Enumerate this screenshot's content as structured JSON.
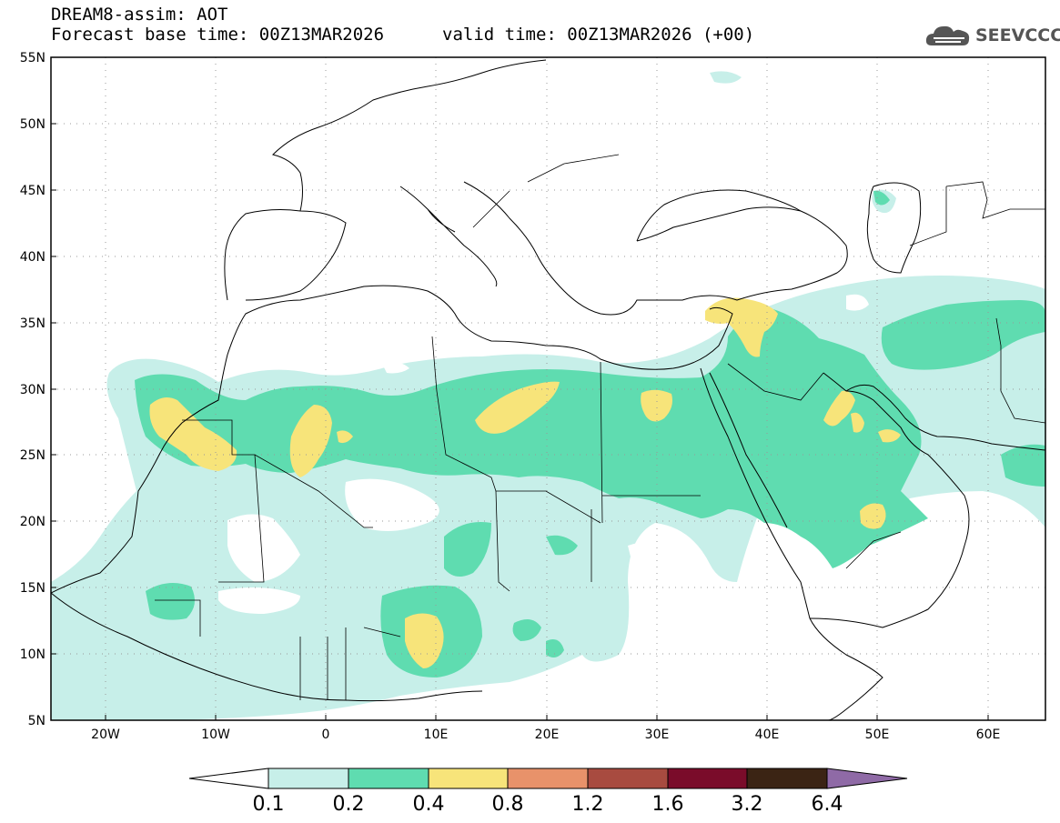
{
  "title": {
    "line1": "DREAM8-assim: AOT",
    "line2_left": "Forecast base time: 00Z13MAR2026",
    "line2_right": "valid time: 00Z13MAR2026 (+00)"
  },
  "logo": {
    "text": "SEEVCCC",
    "icon": "cloud-icon"
  },
  "map": {
    "lat_labels": [
      "55N",
      "50N",
      "45N",
      "40N",
      "35N",
      "30N",
      "25N",
      "20N",
      "15N",
      "10N",
      "5N"
    ],
    "lon_labels": [
      "20W",
      "10W",
      "0",
      "10E",
      "20E",
      "30E",
      "40E",
      "50E",
      "60E"
    ],
    "lon_range": [
      -25,
      65
    ],
    "lat_range": [
      5,
      55
    ],
    "grid": "dotted"
  },
  "colorbar": {
    "labels": [
      "0.1",
      "0.2",
      "0.4",
      "0.8",
      "1.2",
      "1.6",
      "3.2",
      "6.4"
    ],
    "colors": [
      "#c7efe9",
      "#5fdcb0",
      "#f7e47a",
      "#e8926a",
      "#a84b40",
      "#7a0c2a",
      "#3b2414",
      "#8f6aa6"
    ],
    "low_color": "#ffffff"
  },
  "colors": {
    "aot_01": "#c7efe9",
    "aot_02": "#5fdcb0",
    "aot_04": "#f7e47a"
  }
}
